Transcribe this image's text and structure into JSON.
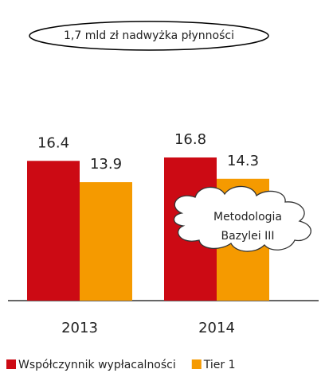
{
  "chart_data": {
    "type": "bar",
    "categories": [
      "2013",
      "2014"
    ],
    "series": [
      {
        "name": "Współczynnik wypłacalności",
        "color": "#cc0a14",
        "values": [
          16.4,
          16.8
        ]
      },
      {
        "name": "Tier 1",
        "color": "#f59a00",
        "values": [
          13.9,
          14.3
        ]
      }
    ],
    "annotations": {
      "bubble": "1,7 mld zł nadwyżka płynności",
      "cloud": [
        "Metodologia",
        "Bazylei III"
      ]
    },
    "legend": "bottom"
  }
}
